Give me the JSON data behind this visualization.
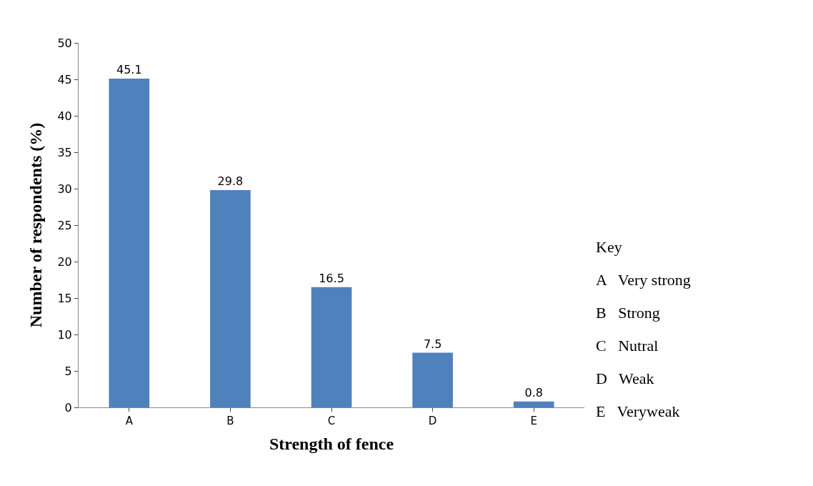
{
  "chart_data": {
    "type": "bar",
    "xlabel": "Strength of fence",
    "ylabel": "Number of respondents (%)",
    "categories": [
      "A",
      "B",
      "C",
      "D",
      "E"
    ],
    "values": [
      45.1,
      29.8,
      16.5,
      7.5,
      0.8
    ],
    "color": "#4f81bd",
    "ylim": [
      0,
      50
    ],
    "yticks": [
      0,
      5,
      10,
      15,
      20,
      25,
      30,
      35,
      40,
      45,
      50
    ],
    "data_labels": true,
    "legend": false,
    "annotations": [
      "Key",
      "A   Very strong",
      "B   Strong",
      "C   Nutral",
      "D   Weak",
      "E   Veryweak"
    ]
  }
}
